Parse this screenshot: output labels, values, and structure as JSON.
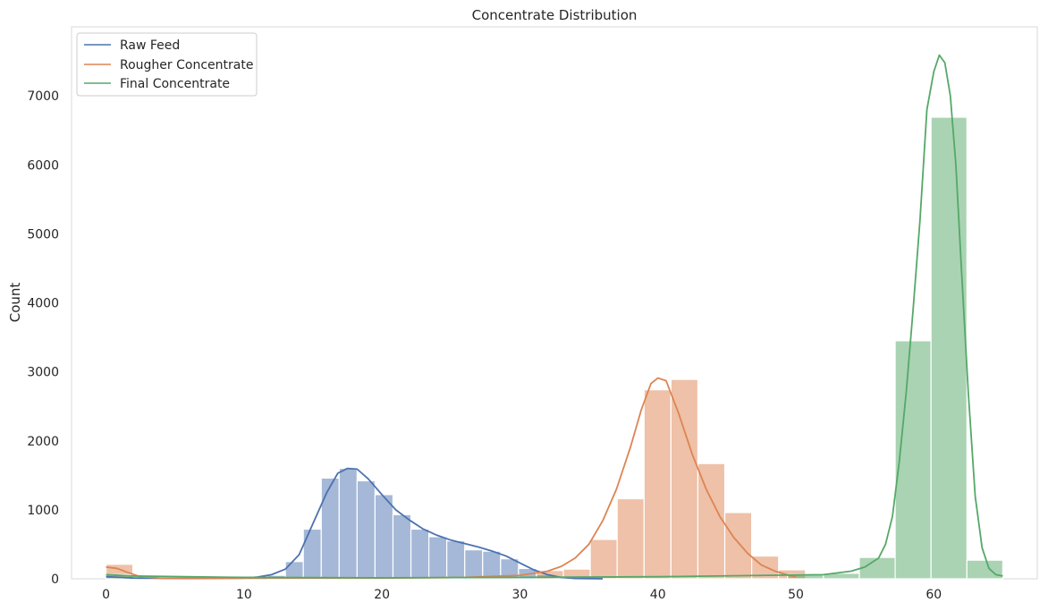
{
  "chart_data": {
    "type": "histogram",
    "title": "Concentrate Distribution",
    "xlabel": "",
    "ylabel": "Count",
    "xlim": [
      -2.5,
      67.5
    ],
    "ylim": [
      0,
      8000
    ],
    "xticks": [
      0,
      10,
      20,
      30,
      40,
      50,
      60
    ],
    "yticks": [
      0,
      1000,
      2000,
      3000,
      4000,
      5000,
      6000,
      7000
    ],
    "grid": false,
    "legend": {
      "position": "top-left",
      "entries": [
        "Raw Feed",
        "Rougher Concentrate",
        "Final Concentrate"
      ]
    },
    "series": [
      {
        "name": "Raw Feed",
        "color": "#4c72b0",
        "bins": [
          {
            "x0": 0.0,
            "x1": 1.3,
            "count": 20
          },
          {
            "x0": 11.7,
            "x1": 13.0,
            "count": 50
          },
          {
            "x0": 13.0,
            "x1": 14.3,
            "count": 250
          },
          {
            "x0": 14.3,
            "x1": 15.6,
            "count": 720
          },
          {
            "x0": 15.6,
            "x1": 16.9,
            "count": 1460
          },
          {
            "x0": 16.9,
            "x1": 18.2,
            "count": 1600
          },
          {
            "x0": 18.2,
            "x1": 19.5,
            "count": 1420
          },
          {
            "x0": 19.5,
            "x1": 20.8,
            "count": 1220
          },
          {
            "x0": 20.8,
            "x1": 22.1,
            "count": 930
          },
          {
            "x0": 22.1,
            "x1": 23.4,
            "count": 720
          },
          {
            "x0": 23.4,
            "x1": 24.7,
            "count": 610
          },
          {
            "x0": 24.7,
            "x1": 26.0,
            "count": 550
          },
          {
            "x0": 26.0,
            "x1": 27.3,
            "count": 420
          },
          {
            "x0": 27.3,
            "x1": 28.6,
            "count": 400
          },
          {
            "x0": 28.6,
            "x1": 29.9,
            "count": 290
          },
          {
            "x0": 29.9,
            "x1": 31.2,
            "count": 150
          },
          {
            "x0": 31.2,
            "x1": 32.5,
            "count": 60
          }
        ],
        "kde": [
          [
            0,
            30
          ],
          [
            2,
            10
          ],
          [
            6,
            5
          ],
          [
            10,
            10
          ],
          [
            11,
            25
          ],
          [
            12,
            60
          ],
          [
            13,
            140
          ],
          [
            14,
            350
          ],
          [
            15,
            800
          ],
          [
            16,
            1250
          ],
          [
            16.8,
            1530
          ],
          [
            17.5,
            1600
          ],
          [
            18.2,
            1590
          ],
          [
            19,
            1450
          ],
          [
            20,
            1220
          ],
          [
            21,
            1000
          ],
          [
            22,
            850
          ],
          [
            23,
            720
          ],
          [
            24,
            630
          ],
          [
            25,
            560
          ],
          [
            26,
            510
          ],
          [
            27,
            460
          ],
          [
            28,
            400
          ],
          [
            29,
            330
          ],
          [
            30,
            230
          ],
          [
            31,
            130
          ],
          [
            32,
            60
          ],
          [
            33,
            20
          ],
          [
            34,
            5
          ],
          [
            36,
            0
          ]
        ]
      },
      {
        "name": "Rougher Concentrate",
        "color": "#dd8452",
        "bins": [
          {
            "x0": 0.0,
            "x1": 1.95,
            "count": 210
          },
          {
            "x0": 1.95,
            "x1": 3.9,
            "count": 20
          },
          {
            "x0": 31.2,
            "x1": 33.15,
            "count": 120
          },
          {
            "x0": 33.15,
            "x1": 35.1,
            "count": 140
          },
          {
            "x0": 35.1,
            "x1": 37.05,
            "count": 570
          },
          {
            "x0": 37.05,
            "x1": 39.0,
            "count": 1160
          },
          {
            "x0": 39.0,
            "x1": 40.95,
            "count": 2740
          },
          {
            "x0": 40.95,
            "x1": 42.9,
            "count": 2890
          },
          {
            "x0": 42.9,
            "x1": 44.85,
            "count": 1670
          },
          {
            "x0": 44.85,
            "x1": 46.8,
            "count": 960
          },
          {
            "x0": 46.8,
            "x1": 48.75,
            "count": 330
          },
          {
            "x0": 48.75,
            "x1": 50.7,
            "count": 130
          }
        ],
        "kde": [
          [
            0,
            170
          ],
          [
            0.8,
            150
          ],
          [
            1.6,
            90
          ],
          [
            2.5,
            30
          ],
          [
            4,
            10
          ],
          [
            10,
            10
          ],
          [
            20,
            10
          ],
          [
            26,
            20
          ],
          [
            30,
            50
          ],
          [
            32,
            110
          ],
          [
            33,
            180
          ],
          [
            34,
            300
          ],
          [
            35,
            500
          ],
          [
            36,
            840
          ],
          [
            37,
            1300
          ],
          [
            38,
            1900
          ],
          [
            38.8,
            2450
          ],
          [
            39.5,
            2830
          ],
          [
            40,
            2910
          ],
          [
            40.6,
            2870
          ],
          [
            41.5,
            2400
          ],
          [
            42.5,
            1800
          ],
          [
            43.5,
            1300
          ],
          [
            44.5,
            900
          ],
          [
            45.5,
            600
          ],
          [
            46.5,
            370
          ],
          [
            47.5,
            200
          ],
          [
            48.5,
            110
          ],
          [
            49.5,
            50
          ],
          [
            50,
            30
          ]
        ]
      },
      {
        "name": "Final Concentrate",
        "color": "#55a868",
        "bins": [
          {
            "x0": 0.0,
            "x1": 2.6,
            "count": 60
          },
          {
            "x0": 49.4,
            "x1": 52.0,
            "count": 60
          },
          {
            "x0": 52.0,
            "x1": 54.6,
            "count": 80
          },
          {
            "x0": 54.6,
            "x1": 57.2,
            "count": 310
          },
          {
            "x0": 57.2,
            "x1": 59.8,
            "count": 3450
          },
          {
            "x0": 59.8,
            "x1": 62.4,
            "count": 6690
          },
          {
            "x0": 62.4,
            "x1": 65.0,
            "count": 270
          }
        ],
        "kde": [
          [
            0,
            60
          ],
          [
            2,
            40
          ],
          [
            10,
            20
          ],
          [
            20,
            15
          ],
          [
            30,
            20
          ],
          [
            40,
            30
          ],
          [
            48,
            50
          ],
          [
            52,
            60
          ],
          [
            54,
            110
          ],
          [
            55,
            170
          ],
          [
            56,
            300
          ],
          [
            56.5,
            500
          ],
          [
            57,
            900
          ],
          [
            57.5,
            1700
          ],
          [
            58,
            2700
          ],
          [
            58.5,
            3900
          ],
          [
            59,
            5200
          ],
          [
            59.5,
            6800
          ],
          [
            60,
            7350
          ],
          [
            60.4,
            7590
          ],
          [
            60.8,
            7480
          ],
          [
            61.2,
            7000
          ],
          [
            61.6,
            6000
          ],
          [
            62,
            4500
          ],
          [
            62.5,
            2700
          ],
          [
            63,
            1200
          ],
          [
            63.5,
            450
          ],
          [
            64,
            150
          ],
          [
            64.5,
            60
          ],
          [
            65,
            40
          ]
        ]
      }
    ]
  }
}
